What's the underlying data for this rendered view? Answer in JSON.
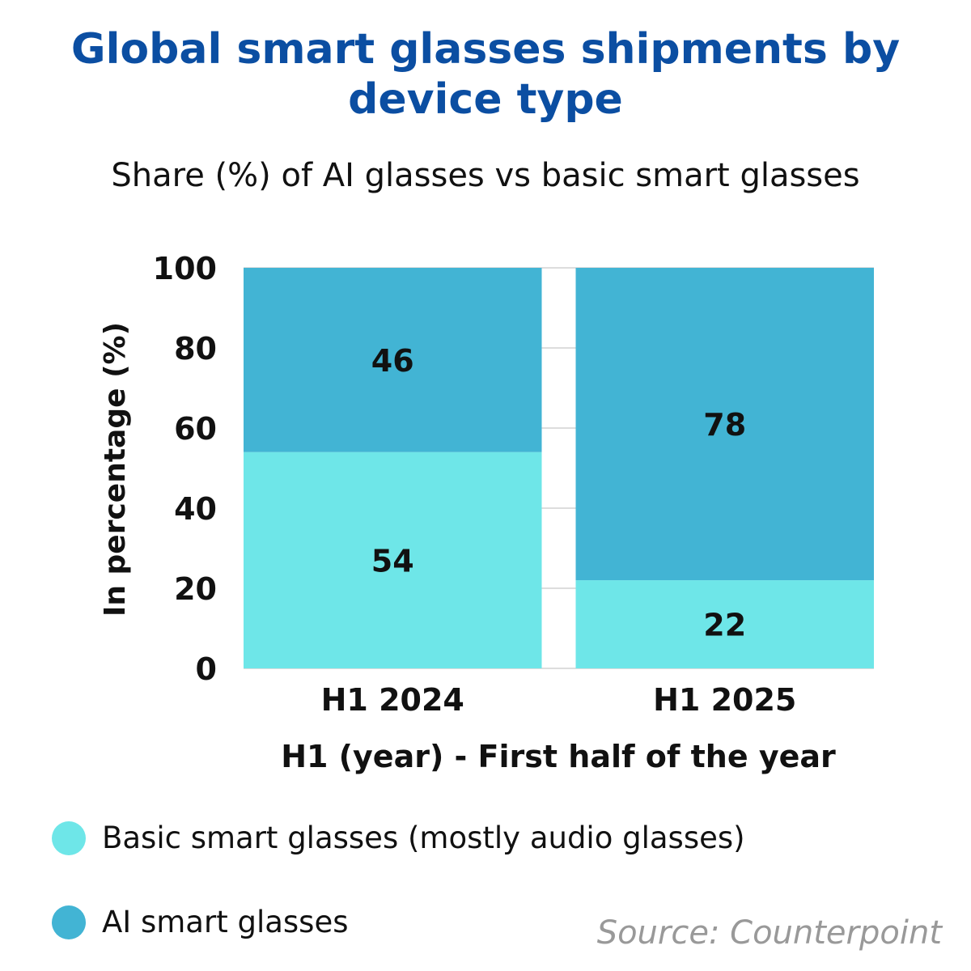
{
  "chart_data": {
    "type": "bar",
    "stacked": true,
    "title": "Global smart glasses shipments by device type",
    "subtitle": "Share (%) of AI glasses vs basic smart glasses",
    "xlabel": "H1 (year) - First half of the year",
    "ylabel": "In percentage (%)",
    "ylim": [
      0,
      100
    ],
    "yticks": [
      0,
      20,
      40,
      60,
      80,
      100
    ],
    "categories": [
      "H1 2024",
      "H1 2025"
    ],
    "series": [
      {
        "name": "Basic smart glasses (mostly audio glasses)",
        "values": [
          54,
          22
        ],
        "color": "#6ee6e8"
      },
      {
        "name": "AI smart glasses",
        "values": [
          46,
          78
        ],
        "color": "#42b4d4"
      }
    ],
    "grid": true,
    "legend_placement": "bottom-left",
    "source": "Source: Counterpoint"
  }
}
